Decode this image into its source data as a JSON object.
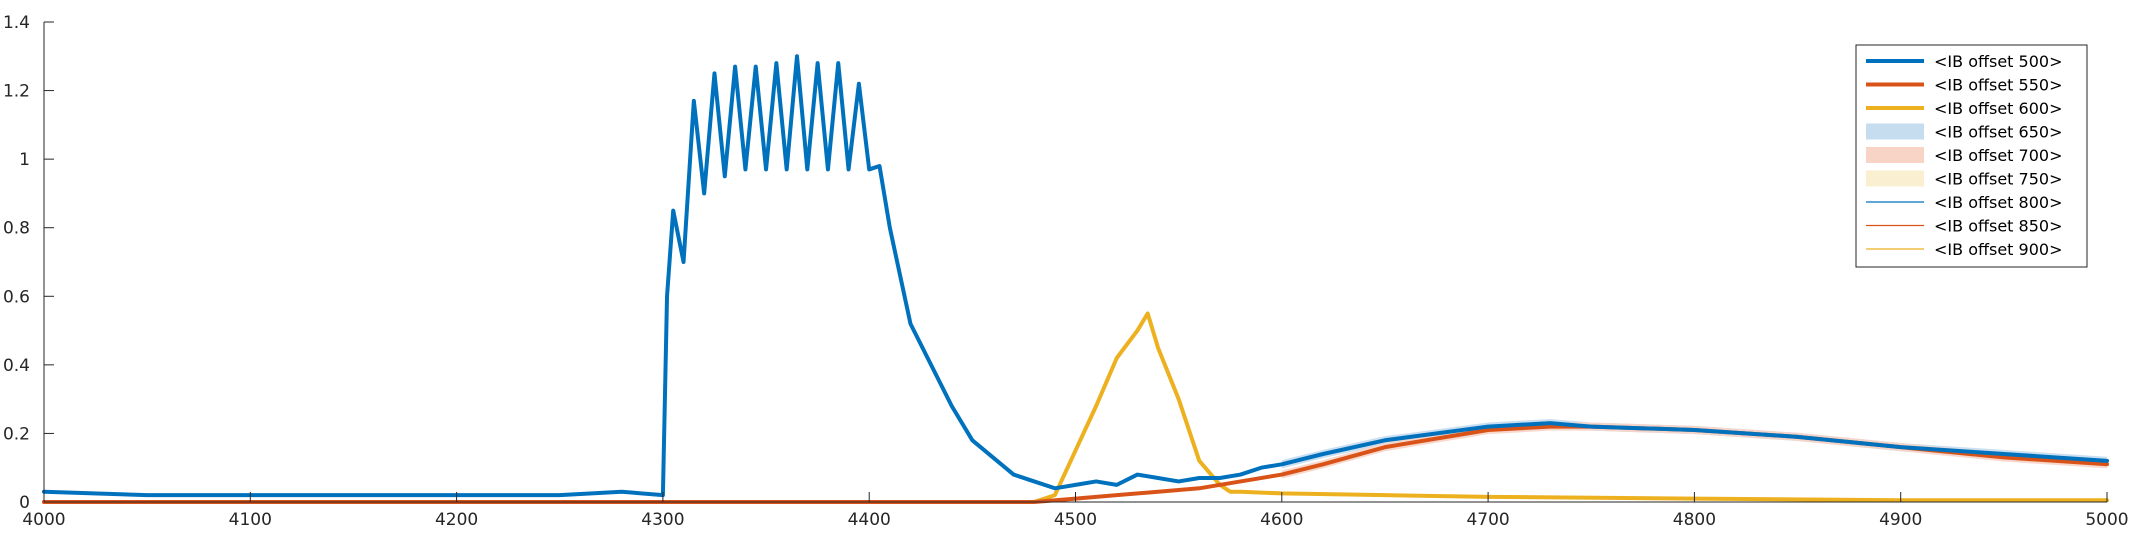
{
  "chart_data": {
    "type": "line",
    "title": "",
    "xlabel": "",
    "ylabel": "",
    "xlim": [
      4000,
      5000
    ],
    "ylim": [
      0,
      1.4
    ],
    "xticks": [
      4000,
      4100,
      4200,
      4300,
      4400,
      4500,
      4600,
      4700,
      4800,
      4900,
      5000
    ],
    "yticks": [
      0,
      0.2,
      0.4,
      0.6,
      0.8,
      1,
      1.2,
      1.4
    ],
    "xtick_labels": [
      "4000",
      "4100",
      "4200",
      "4300",
      "4400",
      "4500",
      "4600",
      "4700",
      "4800",
      "4900",
      "5000"
    ],
    "ytick_labels": [
      "0",
      "0.2",
      "0.4",
      "0.6",
      "0.8",
      "1",
      "1.2",
      "1.4"
    ],
    "grid": false,
    "legend_position": "top-right",
    "series": [
      {
        "name": "<IB offset 500>",
        "style": "thick-line",
        "color": "#0072BD",
        "x": [
          4000,
          4050,
          4100,
          4150,
          4200,
          4250,
          4280,
          4300,
          4302,
          4305,
          4310,
          4315,
          4320,
          4325,
          4330,
          4335,
          4340,
          4345,
          4350,
          4355,
          4360,
          4365,
          4370,
          4375,
          4380,
          4385,
          4390,
          4395,
          4400,
          4405,
          4410,
          4420,
          4430,
          4440,
          4450,
          4460,
          4470,
          4480,
          4490,
          4500,
          4510,
          4520,
          4530,
          4540,
          4550,
          4560,
          4570,
          4580,
          4590,
          4600,
          4620,
          4650,
          4700,
          4730,
          4750,
          4800,
          4850,
          4900,
          4950,
          5000
        ],
        "y": [
          0.03,
          0.02,
          0.02,
          0.02,
          0.02,
          0.02,
          0.03,
          0.02,
          0.6,
          0.85,
          0.7,
          1.17,
          0.9,
          1.25,
          0.95,
          1.27,
          0.97,
          1.27,
          0.97,
          1.28,
          0.97,
          1.3,
          0.97,
          1.28,
          0.97,
          1.28,
          0.97,
          1.22,
          0.97,
          0.98,
          0.8,
          0.52,
          0.4,
          0.28,
          0.18,
          0.13,
          0.08,
          0.06,
          0.04,
          0.05,
          0.06,
          0.05,
          0.08,
          0.07,
          0.06,
          0.07,
          0.07,
          0.08,
          0.1,
          0.11,
          0.14,
          0.18,
          0.22,
          0.23,
          0.22,
          0.21,
          0.19,
          0.16,
          0.14,
          0.12
        ]
      },
      {
        "name": "<IB offset 550>",
        "style": "thick-line",
        "color": "#D95319",
        "x": [
          4000,
          4100,
          4200,
          4300,
          4400,
          4480,
          4500,
          4520,
          4540,
          4560,
          4580,
          4600,
          4620,
          4650,
          4700,
          4730,
          4750,
          4800,
          4850,
          4900,
          4950,
          5000
        ],
        "y": [
          0.0,
          0.0,
          0.0,
          0.0,
          0.0,
          0.0,
          0.01,
          0.02,
          0.03,
          0.04,
          0.06,
          0.08,
          0.11,
          0.16,
          0.21,
          0.22,
          0.22,
          0.21,
          0.19,
          0.16,
          0.13,
          0.11
        ]
      },
      {
        "name": "<IB offset 600>",
        "style": "thick-line",
        "color": "#EDB120",
        "x": [
          4000,
          4100,
          4200,
          4300,
          4400,
          4480,
          4490,
          4500,
          4510,
          4520,
          4530,
          4535,
          4540,
          4550,
          4560,
          4570,
          4575,
          4580,
          4600,
          4650,
          4700,
          4800,
          4900,
          5000
        ],
        "y": [
          0.0,
          0.0,
          0.0,
          0.0,
          0.0,
          0.0,
          0.02,
          0.15,
          0.28,
          0.42,
          0.5,
          0.55,
          0.45,
          0.3,
          0.12,
          0.05,
          0.03,
          0.03,
          0.025,
          0.02,
          0.015,
          0.01,
          0.005,
          0.005
        ]
      },
      {
        "name": "<IB offset 650>",
        "style": "band",
        "color": "#C6DCEF",
        "x": [],
        "y": []
      },
      {
        "name": "<IB offset 700>",
        "style": "band",
        "color": "#F7D4C6",
        "x": [],
        "y": []
      },
      {
        "name": "<IB offset 750>",
        "style": "band",
        "color": "#FBEFD2",
        "x": [],
        "y": []
      },
      {
        "name": "<IB offset 800>",
        "style": "thin-line",
        "color": "#0072BD",
        "x": [],
        "y": []
      },
      {
        "name": "<IB offset 850>",
        "style": "thin-line",
        "color": "#D95319",
        "x": [],
        "y": []
      },
      {
        "name": "<IB offset 900>",
        "style": "thin-line",
        "color": "#EDB120",
        "x": [],
        "y": []
      }
    ]
  }
}
